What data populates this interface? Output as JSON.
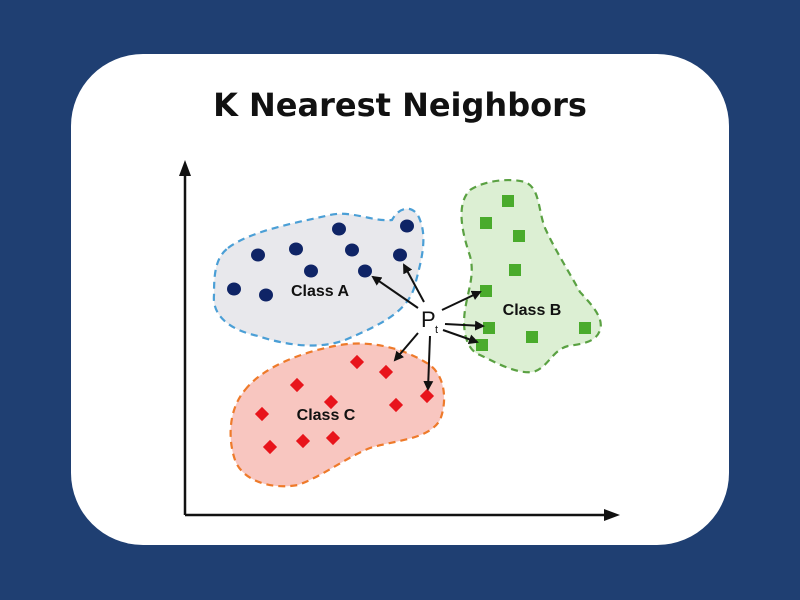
{
  "title": "K Nearest Neighbors",
  "colors": {
    "page_background": "#1f3f72",
    "card_background": "#ffffff",
    "axis": "#111111",
    "arrow": "#111111",
    "class_a_fill": "#e8e8ec",
    "class_a_border": "#4b9fd6",
    "class_a_point": "#0f2466",
    "class_b_fill": "#dcefd3",
    "class_b_border": "#5aa142",
    "class_b_point": "#4aab2c",
    "class_c_fill": "#f8c6c0",
    "class_c_border": "#ee7a2a",
    "class_c_point": "#e8141b"
  },
  "classes": [
    {
      "id": "a",
      "label": "Class A",
      "point_shape": "circle",
      "point_count": 11
    },
    {
      "id": "b",
      "label": "Class B",
      "point_shape": "square",
      "point_count": 11
    },
    {
      "id": "c",
      "label": "Class C",
      "point_shape": "diamond",
      "point_count": 10
    }
  ],
  "query_point": {
    "label": "P",
    "subscript": "t"
  },
  "neighbor_arrows": 8
}
